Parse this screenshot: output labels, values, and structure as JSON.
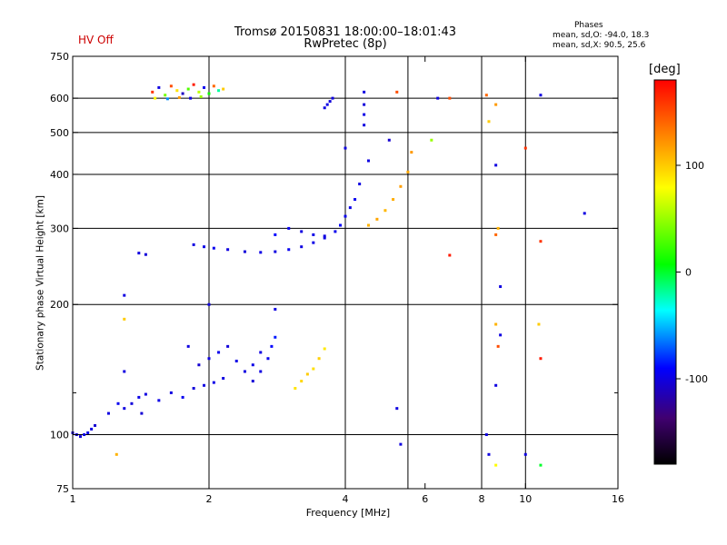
{
  "header": {
    "status": "HV Off",
    "title": "Tromsø 20150831 18:00:00–18:01:43",
    "subtitle": "RwPretec (8p)",
    "phases_label": "Phases",
    "stats_o": "mean, sd,O:  -94.0, 18.3",
    "stats_x": "mean, sd,X:  90.5, 25.6"
  },
  "colorbar": {
    "unit": "[deg]",
    "range": [
      -180,
      180
    ],
    "ticks": [
      {
        "v": 100,
        "label": "100"
      },
      {
        "v": 0,
        "label": "0"
      },
      {
        "v": -100,
        "label": "-100"
      }
    ]
  },
  "chart_data": {
    "type": "scatter",
    "title": "Tromsø 20150831 18:00:00–18:01:43",
    "subtitle": "RwPretec (8p)",
    "xlabel": "Frequency [MHz]",
    "ylabel": "Stationary phase Virtual Height [km]",
    "xscale": "log",
    "yscale": "log",
    "xlim": [
      1,
      16
    ],
    "ylim": [
      75,
      750
    ],
    "xticks": [
      {
        "v": 1,
        "label": "1"
      },
      {
        "v": 2,
        "label": "2"
      },
      {
        "v": 4,
        "label": "4"
      },
      {
        "v": 6,
        "label": "6"
      },
      {
        "v": 8,
        "label": "8"
      },
      {
        "v": 10,
        "label": "10"
      },
      {
        "v": 16,
        "label": "16"
      }
    ],
    "xgrid": [
      2,
      4,
      5.5,
      8,
      10
    ],
    "yticks": [
      {
        "v": 75,
        "label": "75"
      },
      {
        "v": 100,
        "label": "100"
      },
      {
        "v": 200,
        "label": "200"
      },
      {
        "v": 300,
        "label": "300"
      },
      {
        "v": 400,
        "label": "400"
      },
      {
        "v": 500,
        "label": "500"
      },
      {
        "v": 600,
        "label": "600"
      },
      {
        "v": 750,
        "label": "750"
      }
    ],
    "yminor": [
      125
    ],
    "ygrid": [
      100,
      200,
      300,
      400,
      500,
      600
    ],
    "grid": true,
    "color_scale": "phase [deg], -180 to 180",
    "points": [
      [
        1.0,
        101,
        -105
      ],
      [
        1.02,
        100,
        -100
      ],
      [
        1.04,
        99,
        -102
      ],
      [
        1.06,
        100,
        -98
      ],
      [
        1.08,
        101,
        -96
      ],
      [
        1.1,
        103,
        -100
      ],
      [
        1.12,
        105,
        -105
      ],
      [
        1.2,
        112,
        -100
      ],
      [
        1.26,
        118,
        -95
      ],
      [
        1.3,
        115,
        -100
      ],
      [
        1.35,
        118,
        -102
      ],
      [
        1.4,
        122,
        -98
      ],
      [
        1.42,
        112,
        -104
      ],
      [
        1.45,
        124,
        -100
      ],
      [
        1.55,
        120,
        -98
      ],
      [
        1.65,
        125,
        -100
      ],
      [
        1.75,
        122,
        -95
      ],
      [
        1.85,
        128,
        -102
      ],
      [
        1.95,
        130,
        -100
      ],
      [
        2.05,
        132,
        -98
      ],
      [
        2.15,
        135,
        -100
      ],
      [
        1.9,
        145,
        -105
      ],
      [
        2.0,
        150,
        -100
      ],
      [
        2.1,
        155,
        -96
      ],
      [
        2.2,
        160,
        -102
      ],
      [
        2.3,
        148,
        -98
      ],
      [
        2.4,
        140,
        -100
      ],
      [
        2.5,
        133,
        -103
      ],
      [
        2.6,
        140,
        -100
      ],
      [
        2.7,
        150,
        -96
      ],
      [
        2.75,
        160,
        -90
      ],
      [
        2.8,
        168,
        -85
      ],
      [
        2.6,
        155,
        -100
      ],
      [
        2.5,
        145,
        -98
      ],
      [
        3.1,
        128,
        90
      ],
      [
        3.2,
        133,
        95
      ],
      [
        3.3,
        138,
        100
      ],
      [
        3.4,
        142,
        92
      ],
      [
        3.5,
        150,
        98
      ],
      [
        3.6,
        158,
        88
      ],
      [
        1.4,
        263,
        -100
      ],
      [
        1.45,
        261,
        -102
      ],
      [
        1.85,
        275,
        -100
      ],
      [
        1.95,
        272,
        -98
      ],
      [
        2.05,
        270,
        -95
      ],
      [
        2.2,
        268,
        -100
      ],
      [
        2.4,
        265,
        -102
      ],
      [
        2.6,
        264,
        -98
      ],
      [
        2.8,
        265,
        -100
      ],
      [
        3.0,
        268,
        -95
      ],
      [
        3.2,
        272,
        -100
      ],
      [
        3.4,
        278,
        -98
      ],
      [
        3.6,
        285,
        -100
      ],
      [
        3.8,
        295,
        -96
      ],
      [
        3.9,
        305,
        -92
      ],
      [
        4.0,
        320,
        -95
      ],
      [
        4.1,
        335,
        -98
      ],
      [
        4.2,
        350,
        -95
      ],
      [
        4.3,
        380,
        -100
      ],
      [
        2.8,
        290,
        -90
      ],
      [
        3.0,
        300,
        -95
      ],
      [
        3.2,
        295,
        -100
      ],
      [
        3.4,
        290,
        -98
      ],
      [
        3.6,
        288,
        -100
      ],
      [
        4.5,
        305,
        110
      ],
      [
        4.7,
        315,
        115
      ],
      [
        4.9,
        330,
        108
      ],
      [
        5.1,
        350,
        112
      ],
      [
        5.3,
        375,
        118
      ],
      [
        5.5,
        405,
        115
      ],
      [
        5.6,
        450,
        120
      ],
      [
        1.5,
        620,
        160
      ],
      [
        1.55,
        635,
        -100
      ],
      [
        1.6,
        610,
        40
      ],
      [
        1.65,
        640,
        150
      ],
      [
        1.7,
        625,
        90
      ],
      [
        1.75,
        615,
        -110
      ],
      [
        1.8,
        630,
        30
      ],
      [
        1.85,
        645,
        170
      ],
      [
        1.9,
        620,
        60
      ],
      [
        1.95,
        635,
        -95
      ],
      [
        2.0,
        615,
        10
      ],
      [
        2.05,
        640,
        140
      ],
      [
        2.1,
        625,
        -20
      ],
      [
        2.15,
        630,
        100
      ],
      [
        1.52,
        600,
        80
      ],
      [
        1.62,
        598,
        -60
      ],
      [
        1.72,
        602,
        120
      ],
      [
        1.82,
        600,
        -100
      ],
      [
        1.92,
        605,
        50
      ],
      [
        3.6,
        570,
        -100
      ],
      [
        3.65,
        580,
        -98
      ],
      [
        3.7,
        590,
        -102
      ],
      [
        3.75,
        600,
        -100
      ],
      [
        4.4,
        620,
        -100
      ],
      [
        4.4,
        580,
        -102
      ],
      [
        4.4,
        550,
        -98
      ],
      [
        4.4,
        520,
        -100
      ],
      [
        5.2,
        620,
        150
      ],
      [
        5.0,
        480,
        -105
      ],
      [
        4.5,
        430,
        -100
      ],
      [
        4.0,
        460,
        -100
      ],
      [
        6.4,
        600,
        -100
      ],
      [
        6.8,
        600,
        150
      ],
      [
        8.2,
        610,
        140
      ],
      [
        8.3,
        530,
        100
      ],
      [
        8.6,
        580,
        120
      ],
      [
        8.6,
        420,
        -100
      ],
      [
        8.6,
        290,
        140
      ],
      [
        8.7,
        300,
        110
      ],
      [
        8.8,
        220,
        -100
      ],
      [
        10.0,
        460,
        160
      ],
      [
        10.8,
        610,
        -100
      ],
      [
        10.8,
        280,
        160
      ],
      [
        8.6,
        180,
        110
      ],
      [
        8.7,
        160,
        150
      ],
      [
        8.8,
        170,
        -100
      ],
      [
        8.6,
        130,
        -100
      ],
      [
        10.7,
        180,
        100
      ],
      [
        10.8,
        150,
        170
      ],
      [
        8.2,
        100,
        -100
      ],
      [
        8.3,
        90,
        -100
      ],
      [
        8.6,
        85,
        80
      ],
      [
        10.0,
        90,
        -100
      ],
      [
        10.8,
        85,
        0
      ],
      [
        13.5,
        325,
        -100
      ],
      [
        5.2,
        115,
        -100
      ],
      [
        5.3,
        95,
        -100
      ],
      [
        1.3,
        210,
        -100
      ],
      [
        1.3,
        185,
        100
      ],
      [
        1.3,
        140,
        -100
      ],
      [
        1.25,
        90,
        110
      ],
      [
        1.8,
        160,
        -100
      ],
      [
        2.0,
        200,
        -100
      ],
      [
        2.8,
        195,
        -100
      ],
      [
        6.8,
        260,
        170
      ],
      [
        6.2,
        480,
        50
      ]
    ]
  }
}
